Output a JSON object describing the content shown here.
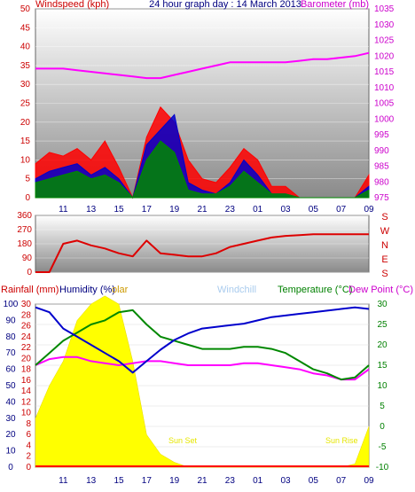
{
  "chart_data": [
    {
      "type": "area",
      "title": "24 hour graph day : 14 March 2013",
      "ylabel_left": "Windspeed (kph)",
      "ylabel_right": "Barometer (mb)",
      "x_ticks": [
        "11",
        "13",
        "15",
        "17",
        "19",
        "21",
        "23",
        "01",
        "03",
        "05",
        "07",
        "09"
      ],
      "ylim_left": [
        0,
        50
      ],
      "ylim_right": [
        975,
        1035
      ],
      "y_ticks_left": [
        "0",
        "5",
        "10",
        "15",
        "20",
        "25",
        "30",
        "35",
        "40",
        "45",
        "50"
      ],
      "y_ticks_right": [
        "975",
        "980",
        "985",
        "990",
        "995",
        "1000",
        "1005",
        "1010",
        "1015",
        "1020",
        "1025",
        "1030",
        "1035"
      ],
      "x_hours": [
        9,
        10,
        11,
        12,
        13,
        14,
        15,
        16,
        17,
        18,
        19,
        20,
        21,
        22,
        23,
        24,
        25,
        26,
        27,
        28,
        29,
        30,
        31,
        32,
        33
      ],
      "series": [
        {
          "name": "Windspeed (kph)",
          "color": "#ff0000",
          "values": [
            9,
            12,
            11,
            13,
            10,
            15,
            8,
            0,
            16,
            24,
            20,
            10,
            5,
            4,
            8,
            13,
            10,
            3,
            3,
            0,
            0,
            0,
            0,
            0,
            6
          ]
        },
        {
          "name": "",
          "color": "#0000cc",
          "values": [
            5,
            7,
            8,
            9,
            6,
            8,
            5,
            0,
            14,
            18,
            22,
            4,
            2,
            1,
            4,
            10,
            6,
            1,
            1,
            0,
            0,
            0,
            0,
            0,
            3
          ]
        },
        {
          "name": "",
          "color": "#008800",
          "values": [
            4,
            5,
            6,
            7,
            5,
            6,
            4,
            0,
            10,
            15,
            12,
            2,
            1,
            1,
            3,
            7,
            4,
            1,
            1,
            0,
            0,
            0,
            0,
            0,
            2
          ]
        },
        {
          "name": "Barometer (mb)",
          "color": "#ff00ff",
          "values": [
            1016,
            1016,
            1016,
            1015.5,
            1015,
            1014.5,
            1014,
            1013.5,
            1013,
            1013,
            1014,
            1015,
            1016,
            1017,
            1018,
            1018,
            1018,
            1018,
            1018,
            1018.5,
            1019,
            1019,
            1019.5,
            1020,
            1021
          ]
        }
      ]
    },
    {
      "type": "line",
      "y_ticks": [
        "0",
        "90",
        "180",
        "270",
        "360"
      ],
      "ylim": [
        0,
        360
      ],
      "direction_labels": [
        "S",
        "E",
        "N",
        "W",
        "S"
      ],
      "x_hours": [
        9,
        10,
        11,
        12,
        13,
        14,
        15,
        16,
        17,
        18,
        19,
        20,
        21,
        22,
        23,
        24,
        25,
        26,
        27,
        28,
        29,
        30,
        31,
        32,
        33
      ],
      "series": [
        {
          "name": "",
          "color": "#dd0000",
          "values": [
            0,
            0,
            180,
            200,
            170,
            150,
            120,
            100,
            200,
            120,
            110,
            100,
            100,
            120,
            160,
            180,
            200,
            220,
            230,
            235,
            240,
            240,
            240,
            240,
            240
          ]
        }
      ]
    },
    {
      "type": "line",
      "labels": {
        "rainfall": "Rainfall (mm)",
        "humidity": "Humidity (%)",
        "solar": "olar",
        "windchill": "Windchill",
        "temperature": "Temperature (°C)",
        "dewpoint": "Dew Point (°C)"
      },
      "annotations": [
        "Sun Set",
        "Sun Rise"
      ],
      "y_ticks_humidity": [
        "0",
        "10",
        "20",
        "30",
        "40",
        "50",
        "60",
        "70",
        "80",
        "90",
        "100"
      ],
      "y_ticks_rain": [
        "0",
        "2",
        "4",
        "6",
        "8",
        "10",
        "12",
        "14",
        "16",
        "18",
        "20",
        "22",
        "24",
        "26",
        "28",
        "30"
      ],
      "y_ticks_temp": [
        "-10",
        "-5",
        "0",
        "5",
        "10",
        "15",
        "20",
        "25",
        "30"
      ],
      "ylim_humidity": [
        0,
        100
      ],
      "ylim_temp": [
        -10,
        30
      ],
      "x_hours": [
        9,
        10,
        11,
        12,
        13,
        14,
        15,
        16,
        17,
        18,
        19,
        20,
        21,
        22,
        23,
        24,
        25,
        26,
        27,
        28,
        29,
        30,
        31,
        32,
        33
      ],
      "series": [
        {
          "name": "Humidity (%)",
          "color": "#0000cc",
          "values": [
            98,
            95,
            85,
            80,
            75,
            70,
            65,
            58,
            65,
            72,
            78,
            82,
            85,
            86,
            87,
            88,
            90,
            92,
            93,
            94,
            95,
            96,
            97,
            98,
            97
          ]
        },
        {
          "name": "Temperature (°C)",
          "color": "#008800",
          "values": [
            15,
            18,
            21,
            23,
            25,
            26,
            28,
            28.5,
            25,
            22,
            21,
            20,
            19,
            19,
            19,
            19.5,
            19.5,
            19,
            18,
            16,
            14,
            13,
            11.5,
            12,
            15
          ]
        },
        {
          "name": "Dew Point (°C)",
          "color": "#ff00ff",
          "values": [
            15,
            16.5,
            17,
            17,
            16,
            15.5,
            15,
            15.5,
            16,
            16,
            15.5,
            15,
            15,
            15,
            15,
            15.5,
            15.5,
            15,
            14.5,
            14,
            13,
            12.5,
            11.5,
            11.5,
            14
          ]
        },
        {
          "name": "olar",
          "color": "#ffff00",
          "values": [
            30,
            50,
            65,
            90,
            100,
            105,
            100,
            65,
            20,
            8,
            3,
            0,
            0,
            0,
            0,
            0,
            0,
            0,
            0,
            0,
            0,
            0,
            0,
            2,
            25
          ]
        }
      ]
    }
  ]
}
